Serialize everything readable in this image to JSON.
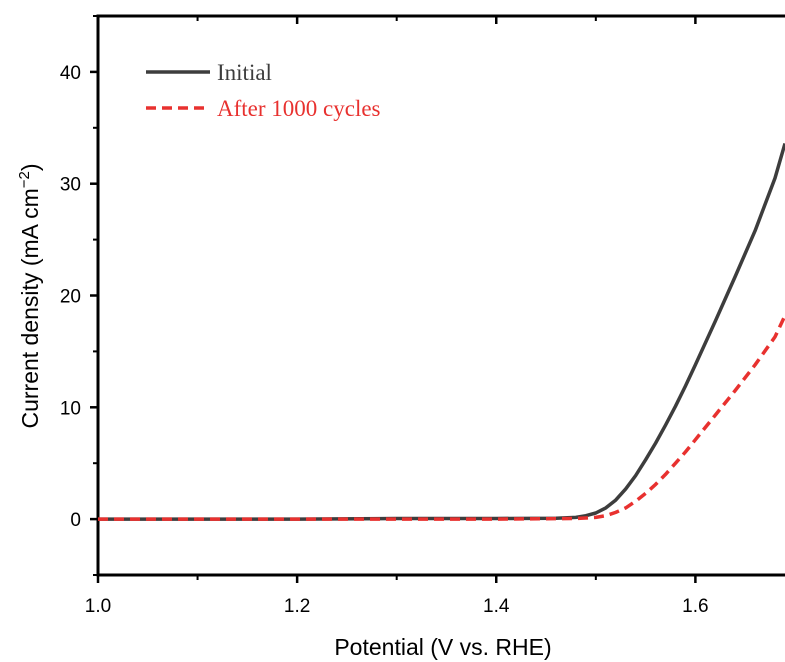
{
  "chart_data": {
    "type": "line",
    "title": "",
    "xlabel": "Potential (V vs. RHE)",
    "ylabel": "Current density (mA cm",
    "ylabel_sup": "−2",
    "ylabel_close": ")",
    "xlim": [
      1.0,
      1.69
    ],
    "ylim": [
      -5,
      45
    ],
    "x_ticks": [
      1.0,
      1.2,
      1.4,
      1.6
    ],
    "x_tick_labels": [
      "1.0",
      "1.2",
      "1.4",
      "1.6"
    ],
    "y_ticks": [
      0,
      10,
      20,
      30,
      40
    ],
    "y_tick_labels": [
      "0",
      "10",
      "20",
      "30",
      "40"
    ],
    "grid": false,
    "legend_position": "top-left",
    "series": [
      {
        "name": "Initial",
        "color": "#3d3d3d",
        "dash": "solid",
        "x": [
          1.0,
          1.1,
          1.2,
          1.3,
          1.4,
          1.46,
          1.48,
          1.49,
          1.5,
          1.51,
          1.52,
          1.53,
          1.54,
          1.55,
          1.56,
          1.57,
          1.58,
          1.59,
          1.6,
          1.62,
          1.64,
          1.66,
          1.68,
          1.69
        ],
        "y": [
          0,
          0,
          0,
          0.05,
          0.05,
          0.08,
          0.15,
          0.3,
          0.55,
          1.0,
          1.7,
          2.7,
          3.9,
          5.3,
          6.8,
          8.4,
          10.1,
          11.9,
          13.8,
          17.7,
          21.7,
          25.8,
          30.5,
          33.6
        ]
      },
      {
        "name": "After 1000 cycles",
        "color": "#e8312f",
        "dash": "dashed",
        "x": [
          1.0,
          1.1,
          1.2,
          1.3,
          1.4,
          1.48,
          1.5,
          1.51,
          1.52,
          1.53,
          1.54,
          1.55,
          1.56,
          1.57,
          1.58,
          1.59,
          1.6,
          1.62,
          1.64,
          1.66,
          1.68,
          1.69
        ],
        "y": [
          0,
          0,
          0,
          0,
          0,
          0.05,
          0.15,
          0.3,
          0.6,
          1.0,
          1.6,
          2.3,
          3.1,
          4.0,
          5.0,
          6.0,
          7.1,
          9.3,
          11.5,
          13.8,
          16.3,
          18.2
        ]
      }
    ]
  }
}
